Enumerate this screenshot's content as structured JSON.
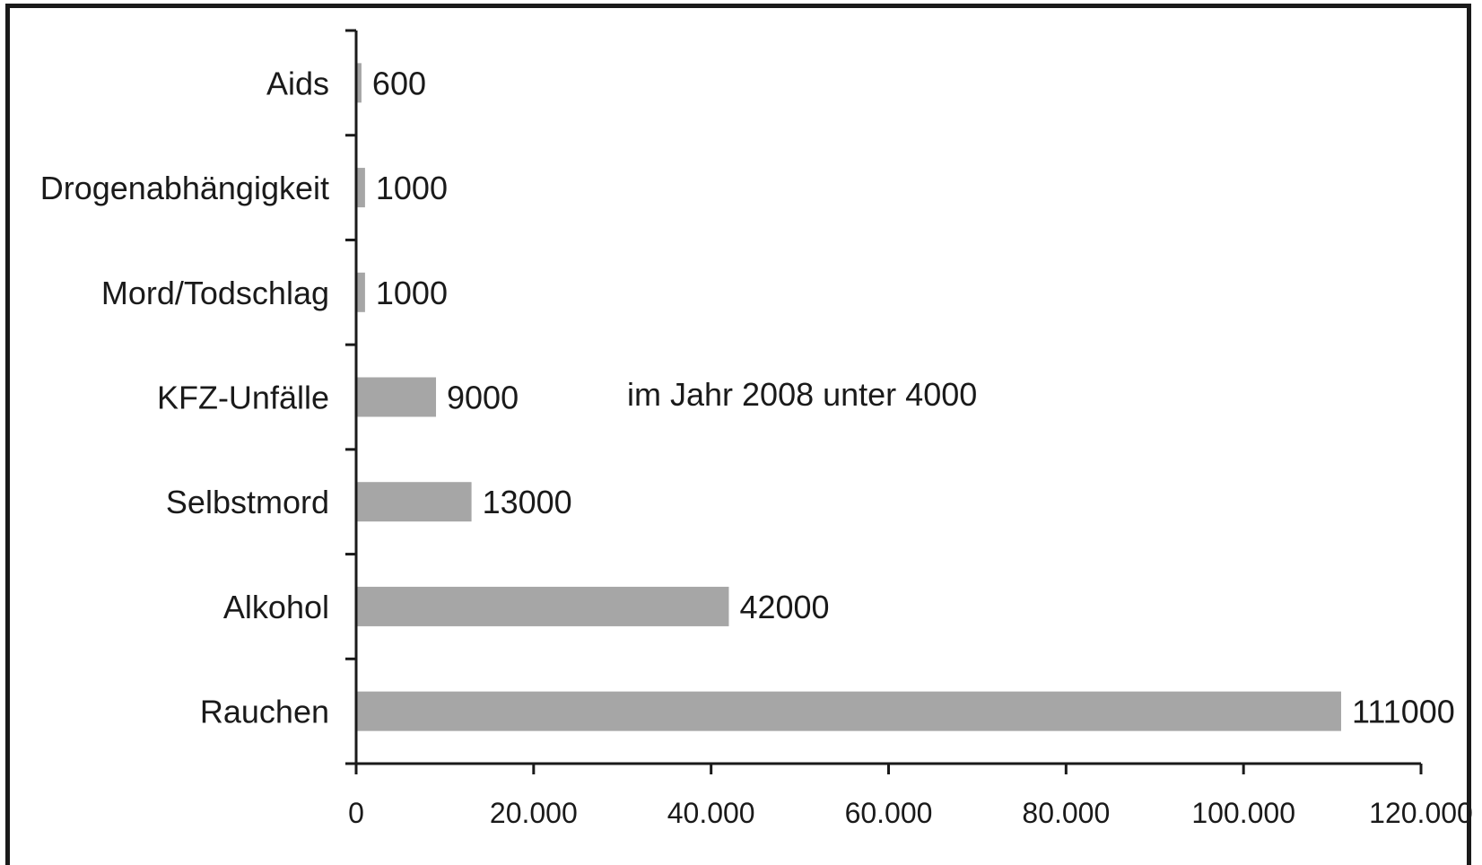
{
  "chart_data": {
    "type": "bar",
    "orientation": "horizontal",
    "categories": [
      "Aids",
      "Drogenabhängigkeit",
      "Mord/Todschlag",
      "KFZ-Unfälle",
      "Selbstmord",
      "Alkohol",
      "Rauchen"
    ],
    "values": [
      600,
      1000,
      1000,
      9000,
      13000,
      42000,
      111000
    ],
    "value_labels": [
      "600",
      "1000",
      "1000",
      "9000",
      "13000",
      "42000",
      "111000"
    ],
    "xlim": [
      0,
      120000
    ],
    "xticks": [
      0,
      20000,
      40000,
      60000,
      80000,
      100000,
      120000
    ],
    "xtick_labels": [
      "0",
      "20.000",
      "40.000",
      "60.000",
      "80.000",
      "100.000",
      "120.000"
    ],
    "annotation": "im Jahr 2008 unter 4000",
    "bar_color": "#a6a6a6",
    "grid": false
  }
}
